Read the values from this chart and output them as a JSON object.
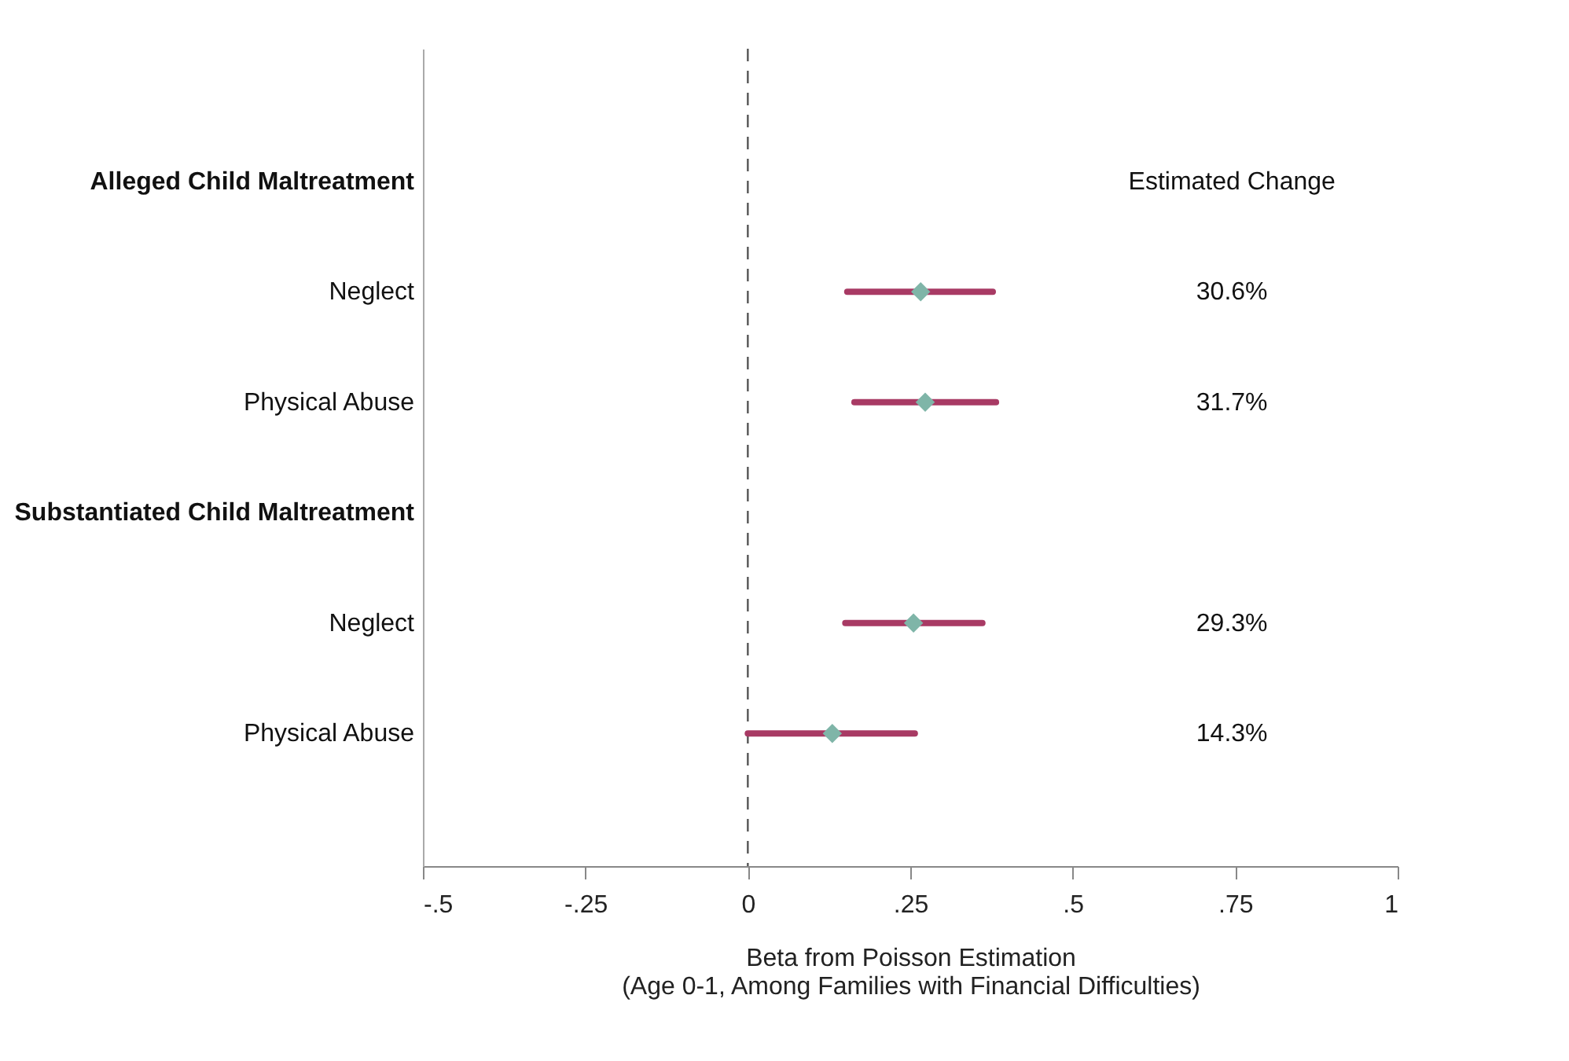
{
  "chart_data": {
    "type": "scatter",
    "orientation": "horizontal",
    "categories": [
      "Alleged Child Maltreatment",
      "Neglect",
      "Physical Abuse",
      "Substantiated Child Maltreatment",
      "Neglect",
      "Physical Abuse"
    ],
    "series": [
      {
        "color": "#7fb5a8",
        "values": [
          null,
          0.266,
          0.273,
          null,
          0.255,
          0.13
        ],
        "errors": [
          null,
          [
            0.153,
            0.377
          ],
          [
            0.164,
            0.382
          ],
          null,
          [
            0.15,
            0.361
          ],
          [
            0.0,
            0.257
          ]
        ]
      }
    ],
    "xlim": [
      -0.5,
      1
    ],
    "xticks": [
      {
        "value": -0.5,
        "label": "-.5"
      },
      {
        "value": -0.25,
        "label": "-.25"
      },
      {
        "value": 0,
        "label": "0"
      },
      {
        "value": 0.25,
        "label": ".25"
      },
      {
        "value": 0.5,
        "label": ".5"
      },
      {
        "value": 0.75,
        "label": ".75"
      },
      {
        "value": 1,
        "label": "1"
      }
    ],
    "xlabel": "Beta from Poisson Estimation\n(Age 0-1, Among Families with Financial Difficulties)",
    "ref_lines": [
      {
        "axis": "x",
        "value": 0,
        "color": "#555555",
        "line_style": "dashed"
      }
    ],
    "annotations": [
      "Estimated Change",
      "30.6%",
      "31.7%",
      "29.3%",
      "14.3%"
    ],
    "marker": "diamond",
    "grid": false
  }
}
